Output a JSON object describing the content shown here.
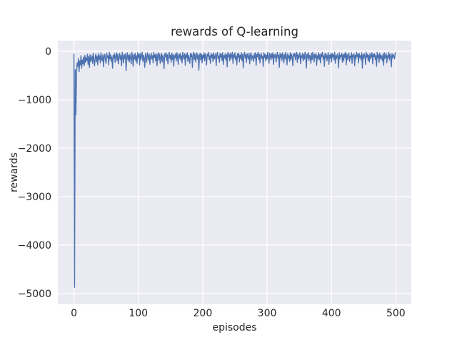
{
  "figure": {
    "title": "rewards of Q-learning",
    "xlabel": "episodes",
    "ylabel": "rewards"
  },
  "colors": {
    "line": "#4c72b0",
    "plot_background": "#eaeaf2",
    "grid": "#ffffff",
    "figure_background": "#ffffff",
    "text": "#262626"
  },
  "chart_data": {
    "type": "line",
    "title": "rewards of Q-learning",
    "xlabel": "episodes",
    "ylabel": "rewards",
    "xlim": [
      -25,
      524
    ],
    "ylim": [
      -5220,
      220
    ],
    "xticks": [
      0,
      100,
      200,
      300,
      400,
      500
    ],
    "xtick_labels": [
      "0",
      "100",
      "200",
      "300",
      "400",
      "500"
    ],
    "yticks": [
      0,
      -1000,
      -2000,
      -3000,
      -4000,
      -5000
    ],
    "ytick_labels": [
      "0",
      "−1000",
      "−2000",
      "−3000",
      "−4000",
      "−5000"
    ],
    "grid": true,
    "legend": null,
    "series": [
      {
        "name": "rewards",
        "x_start": 0,
        "x_step": 1,
        "values": [
          -60,
          -4870,
          -380,
          -1310,
          -460,
          -240,
          -310,
          -150,
          -420,
          -200,
          -280,
          -90,
          -350,
          -180,
          -260,
          -120,
          -300,
          -80,
          -230,
          -140,
          -190,
          -60,
          -270,
          -110,
          -330,
          -70,
          -210,
          -160,
          -90,
          -250,
          -40,
          -180,
          -300,
          -130,
          -60,
          -220,
          -100,
          -280,
          -50,
          -170,
          -90,
          -240,
          -30,
          -150,
          -200,
          -70,
          -320,
          -110,
          -60,
          -180,
          -250,
          -40,
          -130,
          -90,
          -280,
          -20,
          -160,
          -70,
          -210,
          -120,
          -350,
          -80,
          -140,
          -50,
          -230,
          -100,
          -30,
          -190,
          -60,
          -260,
          -130,
          -40,
          -170,
          -90,
          -300,
          -20,
          -110,
          -240,
          -70,
          -150,
          -50,
          -400,
          -120,
          -30,
          -180,
          -80,
          -220,
          -60,
          -140,
          -260,
          -20,
          -100,
          -310,
          -70,
          -160,
          -40,
          -200,
          -90,
          -250,
          -30,
          -130,
          -60,
          -280,
          -40,
          -170,
          -100,
          -20,
          -210,
          -80,
          -150,
          -330,
          -50,
          -120,
          -230,
          -30,
          -90,
          -180,
          -60,
          -270,
          -110,
          -40,
          -160,
          -90,
          -240,
          -20,
          -130,
          -70,
          -200,
          -50,
          -300,
          -100,
          -30,
          -180,
          -60,
          -250,
          -120,
          -40,
          -220,
          -80,
          -140,
          -360,
          -50,
          -110,
          -30,
          -190,
          -70,
          -260,
          -100,
          -20,
          -150,
          -80,
          -230,
          -40,
          -170,
          -60,
          -310,
          -90,
          -130,
          -50,
          -200,
          -30,
          -120,
          -270,
          -60,
          -140,
          -40,
          -180,
          -90,
          -240,
          -20,
          -100,
          -160,
          -50,
          -290,
          -70,
          -130,
          -30,
          -210,
          -80,
          -150,
          -250,
          -40,
          -110,
          -60,
          -330,
          -90,
          -20,
          -170,
          -50,
          -220,
          -130,
          -30,
          -160,
          -70,
          -390,
          -100,
          -40,
          -180,
          -60,
          -240,
          -80,
          -140,
          -30,
          -200,
          -50,
          -120,
          -280,
          -60,
          -100,
          -20,
          -170,
          -90,
          -250,
          -40,
          -130,
          -70,
          -210,
          -30,
          -160,
          -110,
          -50,
          -300,
          -80,
          -20,
          -150,
          -100,
          -230,
          -40,
          -120,
          -60,
          -190,
          -30,
          -270,
          -90,
          -140,
          -50,
          -180,
          -70,
          -320,
          -20,
          -110,
          -60,
          -200,
          -40,
          -160,
          -90,
          -20,
          -250,
          -70,
          -130,
          -30,
          -170,
          -100,
          -280,
          -50,
          -120,
          -40,
          -220,
          -80,
          -150,
          -30,
          -190,
          -60,
          -340,
          -100,
          -20,
          -140,
          -70,
          -230,
          -50,
          -110,
          -160,
          -40,
          -260,
          -80,
          -30,
          -180,
          -90,
          -120,
          -210,
          -50,
          -140,
          -30,
          -290,
          -70,
          -110,
          -20,
          -170,
          -60,
          -240,
          -90,
          -40,
          -150,
          -100,
          -310,
          -30,
          -130,
          -60,
          -200,
          -80,
          -160,
          -20,
          -110,
          -250,
          -40,
          -90,
          -180,
          -50,
          -140,
          -30,
          -270,
          -70,
          -120,
          -60,
          -220,
          -100,
          -20,
          -150,
          -80,
          -330,
          -40,
          -130,
          -60,
          -190,
          -30,
          -100,
          -240,
          -70,
          -160,
          -20,
          -110,
          -280,
          -50,
          -140,
          -90,
          -210,
          -30,
          -170,
          -60,
          -120,
          -300,
          -50,
          -100,
          -40,
          -180,
          -80,
          -20,
          -230,
          -60,
          -150,
          -110,
          -30,
          -260,
          -90,
          -130,
          -40,
          -200,
          -70,
          -160,
          -20,
          -120,
          -350,
          -60,
          -140,
          -30,
          -190,
          -80,
          -110,
          -250,
          -40,
          -170,
          -20,
          -100,
          -220,
          -60,
          -130,
          -50,
          -290,
          -90,
          -150,
          -30,
          -180,
          -70,
          -240,
          -50,
          -110,
          -20,
          -160,
          -90,
          -310,
          -40,
          -130,
          -60,
          -200,
          -100,
          -30,
          -270,
          -80,
          -140,
          -50,
          -220,
          -40,
          -120,
          -70,
          -180,
          -20,
          -250,
          -90,
          -150,
          -60,
          -100,
          -340,
          -30,
          -160,
          -80,
          -110,
          -40,
          -230,
          -70,
          -190,
          -50,
          -130,
          -20,
          -280,
          -60,
          -170,
          -90,
          -40,
          -210,
          -100,
          -140,
          -30,
          -250,
          -70,
          -120,
          -50,
          -300,
          -80,
          -160,
          -20,
          -110,
          -60,
          -240,
          -40,
          -130,
          -90,
          -180,
          -30,
          -350,
          -70,
          -150,
          -50,
          -100,
          -270,
          -20,
          -120,
          -60,
          -190,
          -80,
          -220,
          -40,
          -140,
          -100,
          -30,
          -260,
          -60,
          -110,
          -50,
          -170,
          -90,
          -310,
          -20,
          -130,
          -70,
          -230,
          -40,
          -160,
          -80,
          -120,
          -200,
          -60,
          -290,
          -30,
          -150,
          -100,
          -40,
          -240,
          -90,
          -130,
          -20,
          -180,
          -60,
          -110,
          -320,
          -50,
          -140,
          -70,
          -100,
          -160,
          -30
        ]
      }
    ]
  }
}
